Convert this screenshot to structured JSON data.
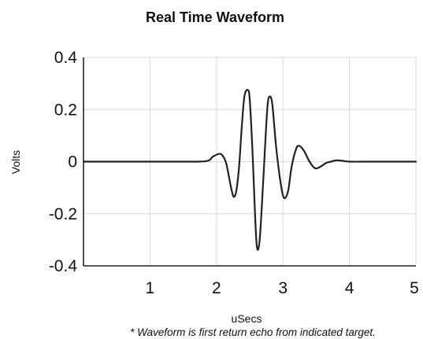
{
  "chart_data": {
    "type": "line",
    "title": "Real Time Waveform",
    "xlabel": "uSecs",
    "ylabel": "Volts",
    "footnote": "* Waveform is first return echo from indicated target.",
    "xlim": [
      0,
      5
    ],
    "ylim": [
      -0.4,
      0.4
    ],
    "x_ticks": [
      1,
      2,
      3,
      4,
      5
    ],
    "x_tick_labels": [
      "1",
      "2",
      "3",
      "4",
      "5"
    ],
    "y_ticks": [
      0.4,
      0.2,
      0,
      -0.2,
      -0.4
    ],
    "y_tick_labels": [
      "0.4",
      "0.2",
      "0",
      "-0.2",
      "-0.4"
    ],
    "grid": true,
    "series": [
      {
        "color": "#222222",
        "x": [
          0,
          0.5,
          1.0,
          1.5,
          1.85,
          1.95,
          2.05,
          2.1,
          2.15,
          2.22,
          2.26,
          2.3,
          2.34,
          2.38,
          2.42,
          2.47,
          2.5,
          2.54,
          2.58,
          2.61,
          2.65,
          2.7,
          2.74,
          2.77,
          2.8,
          2.84,
          2.9,
          2.97,
          3.02,
          3.08,
          3.13,
          3.2,
          3.25,
          3.32,
          3.4,
          3.48,
          3.56,
          3.65,
          3.72,
          3.8,
          3.9,
          4.0,
          4.2,
          4.5,
          5.0
        ],
        "y": [
          0,
          0,
          0,
          0,
          0.002,
          0.02,
          0.03,
          0.02,
          -0.01,
          -0.1,
          -0.135,
          -0.11,
          -0.02,
          0.13,
          0.25,
          0.275,
          0.24,
          0.05,
          -0.2,
          -0.33,
          -0.3,
          -0.09,
          0.1,
          0.22,
          0.25,
          0.22,
          0.05,
          -0.09,
          -0.14,
          -0.11,
          -0.02,
          0.05,
          0.06,
          0.04,
          0.0,
          -0.025,
          -0.02,
          -0.005,
          0.0,
          0.005,
          0.003,
          0.0,
          0.0,
          0.0,
          0.0
        ]
      }
    ]
  }
}
